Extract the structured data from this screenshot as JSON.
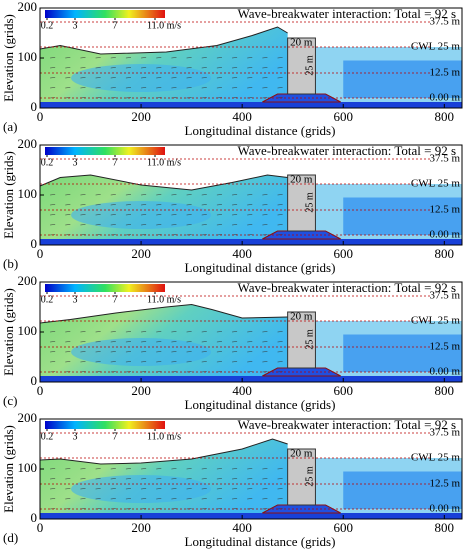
{
  "chart_data": [
    {
      "type": "field",
      "panel_label": "(a)",
      "title": "Wave-breakwater interaction: Total = 92 s",
      "xlabel": "Longitudinal distance (grids)",
      "ylabel": "Elevation (grids)",
      "xlim": [
        0,
        835
      ],
      "ylim": [
        0,
        200
      ],
      "xticks": [
        0,
        200,
        400,
        600,
        800
      ],
      "yticks": [
        0,
        100,
        200
      ],
      "clim": [
        0,
        12
      ],
      "colorbar_ticks": [
        0.2,
        3.0,
        7.0,
        {
          "value": 11.0,
          "label": "11.0 m/s"
        }
      ],
      "level_labels": [
        "37.5 m",
        "CWL 25 m",
        "12.5 m",
        "0.00 m"
      ],
      "crest_label": "20 m",
      "height_label": "25 m"
    },
    {
      "type": "field",
      "panel_label": "(b)",
      "title": "Wave-breakwater interaction: Total = 92 s",
      "xlabel": "Longitudinal distance (grids)",
      "ylabel": "Elevation (grids)",
      "xlim": [
        0,
        835
      ],
      "ylim": [
        0,
        200
      ],
      "xticks": [
        0,
        200,
        400,
        600,
        800
      ],
      "yticks": [
        0,
        100,
        200
      ],
      "clim": [
        0,
        12
      ],
      "colorbar_ticks": [
        0.2,
        3.0,
        7.0,
        {
          "value": 11.0,
          "label": "11.0 m/s"
        }
      ],
      "level_labels": [
        "37.5 m",
        "CWL 25 m",
        "12.5 m",
        "0.00 m"
      ],
      "crest_label": "20 m",
      "height_label": "25 m"
    },
    {
      "type": "field",
      "panel_label": "(c)",
      "title": "Wave-breakwater interaction: Total = 92 s",
      "xlabel": "Longitudinal distance (grids)",
      "ylabel": "Elevation (grids)",
      "xlim": [
        0,
        835
      ],
      "ylim": [
        0,
        200
      ],
      "xticks": [
        0,
        200,
        400,
        600,
        800
      ],
      "yticks": [
        0,
        100,
        200
      ],
      "clim": [
        0,
        12
      ],
      "colorbar_ticks": [
        0.2,
        3.0,
        7.0,
        {
          "value": 11.0,
          "label": "11.0 m/s"
        }
      ],
      "level_labels": [
        "37.5 m",
        "CWL 25 m",
        "12.5 m",
        "0.00 m"
      ],
      "crest_label": "20 m",
      "height_label": "25 m"
    },
    {
      "type": "field",
      "panel_label": "(d)",
      "title": "Wave-breakwater interaction: Total = 92 s",
      "xlabel": "Longitudinal distance (grids)",
      "ylabel": "Elevation (grids)",
      "xlim": [
        0,
        835
      ],
      "ylim": [
        0,
        200
      ],
      "xticks": [
        0,
        200,
        400,
        600,
        800
      ],
      "yticks": [
        0,
        100,
        200
      ],
      "clim": [
        0,
        12
      ],
      "colorbar_ticks": [
        0.2,
        3.0,
        7.0,
        {
          "value": 11.0,
          "label": "11.0 m/s"
        }
      ],
      "level_labels": [
        "37.5 m",
        "CWL 25 m",
        "12.5 m",
        "0.00 m"
      ],
      "crest_label": "20 m",
      "height_label": "25 m"
    }
  ]
}
